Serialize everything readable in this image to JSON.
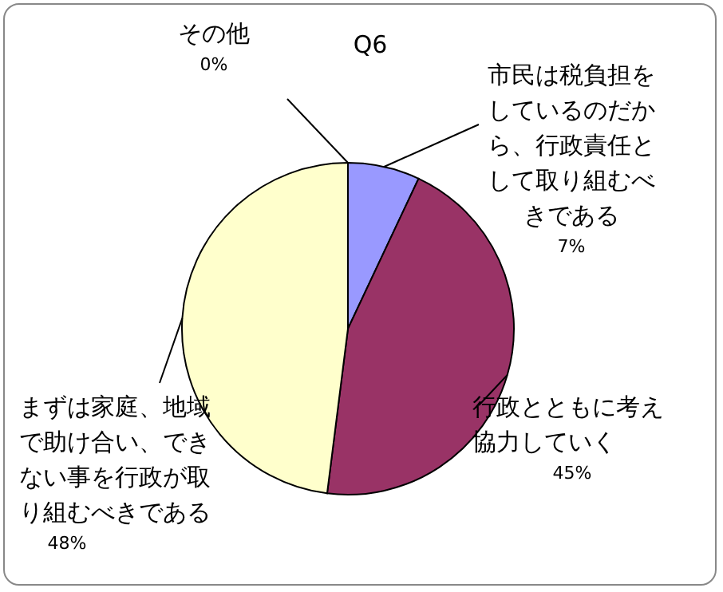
{
  "chart_data": {
    "type": "pie",
    "title": "Q6",
    "categories": [
      "市民は税負担をしているのだから、行政責任として取り組むべきである",
      "行政とともに考え協力していく",
      "まずは家庭、地域で助け合い、できない事を行政が取り組むべきである",
      "その他"
    ],
    "values": [
      7,
      45,
      48,
      0
    ],
    "value_labels": [
      "7%",
      "45%",
      "48%",
      "0%"
    ],
    "colors": [
      "#9999ff",
      "#993366",
      "#ffffcc",
      "#ccffff"
    ],
    "legend": false
  }
}
